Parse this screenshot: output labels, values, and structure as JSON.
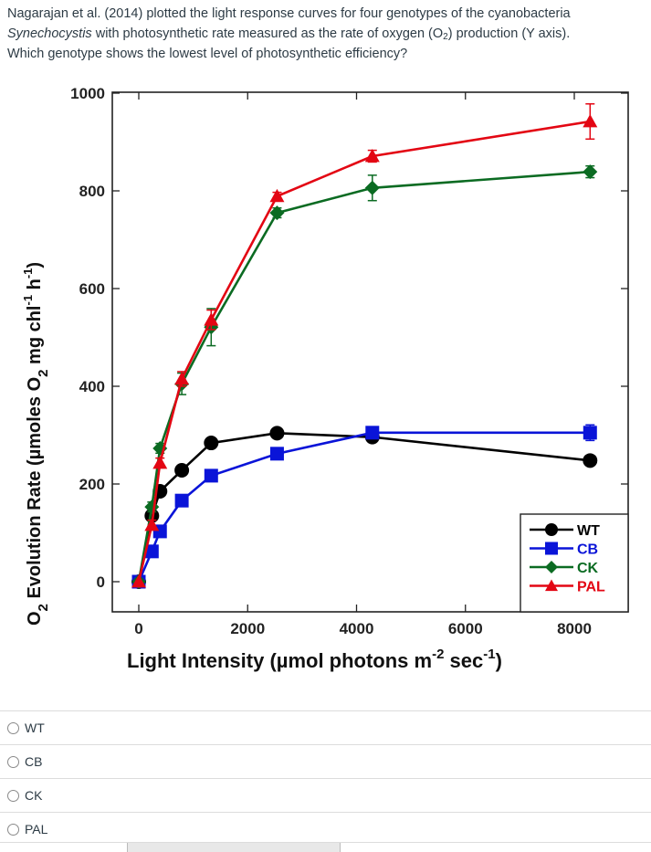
{
  "question": {
    "line1": "Nagarajan et al. (2014) plotted the light response curves for four genotypes of the cyanobacteria",
    "line2_italic": "Synechocystis",
    "line2_pre": " with photosynthetic rate measured as the rate of oxygen (O",
    "line2_sub": "2",
    "line2_post": ") production (Y axis).",
    "line3": "Which genotype shows the lowest level of photosynthetic efficiency?"
  },
  "answers": [
    {
      "label": "WT",
      "selected": false
    },
    {
      "label": "CB",
      "selected": false
    },
    {
      "label": "CK",
      "selected": false
    },
    {
      "label": "PAL",
      "selected": false
    }
  ],
  "chart_data": {
    "type": "line",
    "title": "",
    "xlabel": "Light Intensity (µmol photons m⁻² sec⁻¹)",
    "xlabel_parts": {
      "main": "Light Intensity (µmol photons m",
      "sup1": "-2",
      "mid": " sec",
      "sup2": "-1",
      "end": ")"
    },
    "ylabel": "O₂ Evolution Rate (µmoles O₂ mg chl⁻¹ h⁻¹)",
    "ylabel_parts": {
      "a": "O",
      "sub1": "2",
      "b": " Evolution Rate (µmoles O",
      "sub2": "2",
      "c": " mg chl",
      "sup1": "-1",
      "d": " h",
      "sup2": "-1",
      "e": ")"
    },
    "xlim": [
      -500,
      9000
    ],
    "ylim": [
      -30,
      1000
    ],
    "xticks": [
      0,
      2000,
      4000,
      6000,
      8000
    ],
    "xtick_labels": [
      "0",
      "2000",
      "4000",
      "6000",
      "8000"
    ],
    "yticks": [
      0,
      200,
      400,
      600,
      800,
      1000
    ],
    "ytick_labels": [
      "0",
      "200",
      "400",
      "600",
      "800",
      "1000"
    ],
    "grid": false,
    "legend_position": "bottom-right",
    "series": [
      {
        "name": "WT",
        "color": "#000000",
        "marker": "circle",
        "x": [
          0,
          240,
          390,
          790,
          1330,
          2540,
          4290,
          8290
        ],
        "y": [
          0,
          135,
          185,
          228,
          284,
          304,
          296,
          248
        ],
        "err": [
          0,
          10,
          8,
          8,
          6,
          6,
          10,
          6
        ]
      },
      {
        "name": "CB",
        "color": "#0a14d8",
        "marker": "square",
        "x": [
          0,
          240,
          390,
          790,
          1330,
          2540,
          4290,
          8290
        ],
        "y": [
          0,
          62,
          103,
          166,
          217,
          262,
          305,
          305
        ],
        "err": [
          0,
          6,
          6,
          6,
          6,
          8,
          8,
          16
        ]
      },
      {
        "name": "CK",
        "color": "#0b6b22",
        "marker": "diamond",
        "x": [
          0,
          240,
          390,
          790,
          1330,
          2540,
          4290,
          8290
        ],
        "y": [
          0,
          153,
          273,
          405,
          521,
          755,
          806,
          839
        ],
        "err": [
          0,
          10,
          10,
          22,
          38,
          10,
          26,
          12
        ]
      },
      {
        "name": "PAL",
        "color": "#e30613",
        "marker": "triangle",
        "x": [
          0,
          240,
          390,
          790,
          1330,
          2540,
          4290,
          8290
        ],
        "y": [
          0,
          116,
          243,
          415,
          536,
          789,
          871,
          942
        ],
        "err": [
          0,
          10,
          10,
          15,
          20,
          8,
          12,
          36
        ]
      }
    ]
  }
}
